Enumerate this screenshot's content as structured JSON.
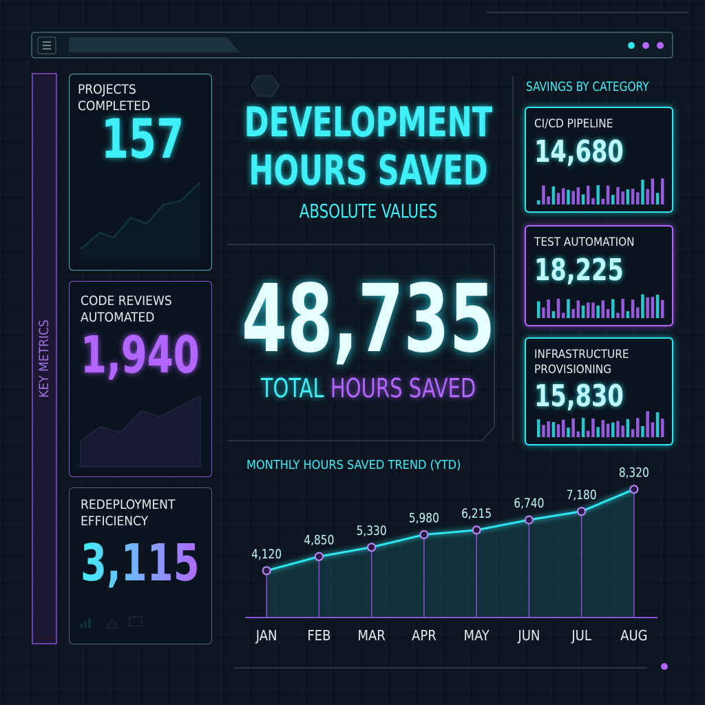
{
  "header": {
    "title_line1": "DEVELOPMENT",
    "title_line2": "HOURS SAVED",
    "subtitle": "ABSOLUTE VALUES"
  },
  "sidebar_label": "KEY METRICS",
  "metrics": [
    {
      "label": "PROJECTS COMPLETED",
      "value": "157"
    },
    {
      "label": "CODE REVIEWS AUTOMATED",
      "value": "1,940"
    },
    {
      "label": "REDEPLOYMENT EFFICIENCY",
      "value": "3,115"
    }
  ],
  "total": {
    "value": "48,735",
    "label_part1": "TOTAL",
    "label_part2": "HOURS SAVED"
  },
  "categories_panel": {
    "title": "SAVINGS BY CATEGORY",
    "items": [
      {
        "label": "CI/CD PIPELINE",
        "value": "14,680"
      },
      {
        "label": "TEST AUTOMATION",
        "value": "18,225"
      },
      {
        "label": "INFRASTRUCTURE PROVISIONING",
        "value": "15,830"
      }
    ]
  },
  "chart_data": {
    "type": "line",
    "title": "MONTHLY HOURS SAVED TREND (YTD)",
    "categories": [
      "JAN",
      "FEB",
      "MAR",
      "APR",
      "MAY",
      "JUN",
      "JUL",
      "AUG"
    ],
    "values": [
      4120,
      4850,
      5330,
      5980,
      6215,
      6740,
      7180,
      8320
    ],
    "value_labels": [
      "4,120",
      "4,850",
      "5,330",
      "5,980",
      "6,215",
      "6,740",
      "7,180",
      "8,320"
    ],
    "color": "#2ee6f0",
    "ylim": [
      1700,
      8700
    ]
  }
}
